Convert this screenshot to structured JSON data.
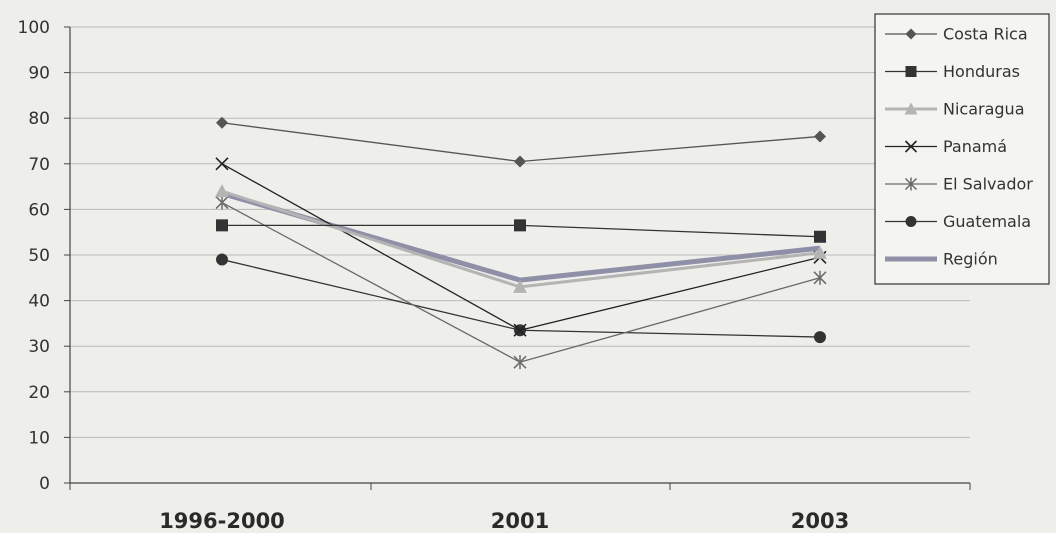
{
  "chart_data": {
    "type": "line",
    "title": "",
    "xlabel": "",
    "ylabel": "",
    "categories": [
      "1996-2000",
      "2001",
      "2003"
    ],
    "ylim": [
      0,
      100
    ],
    "yticks": [
      0,
      10,
      20,
      30,
      40,
      50,
      60,
      70,
      80,
      90,
      100
    ],
    "grid": true,
    "legend_position": "top-right",
    "series": [
      {
        "name": "Costa Rica",
        "values": [
          79,
          70.5,
          76
        ],
        "color": "#555555",
        "marker": "diamond",
        "width": 1.3
      },
      {
        "name": "Honduras",
        "values": [
          56.5,
          56.5,
          54
        ],
        "color": "#333333",
        "marker": "square",
        "width": 1.3
      },
      {
        "name": "Nicaragua",
        "values": [
          64,
          43,
          50.5
        ],
        "color": "#b4b4b4",
        "marker": "triangle",
        "width": 3
      },
      {
        "name": "Panamá",
        "values": [
          70,
          33.5,
          49.5
        ],
        "color": "#222222",
        "marker": "x",
        "width": 1.3
      },
      {
        "name": "El Salvador",
        "values": [
          61.5,
          26.5,
          45
        ],
        "color": "#6a6a6a",
        "marker": "asterisk",
        "width": 1.3
      },
      {
        "name": "Guatemala",
        "values": [
          49,
          33.5,
          32
        ],
        "color": "#333333",
        "marker": "circle",
        "width": 1.3
      },
      {
        "name": "Región",
        "values": [
          63.5,
          44.5,
          51.5
        ],
        "color": "#8f8fa8",
        "marker": "none",
        "width": 5
      }
    ]
  }
}
